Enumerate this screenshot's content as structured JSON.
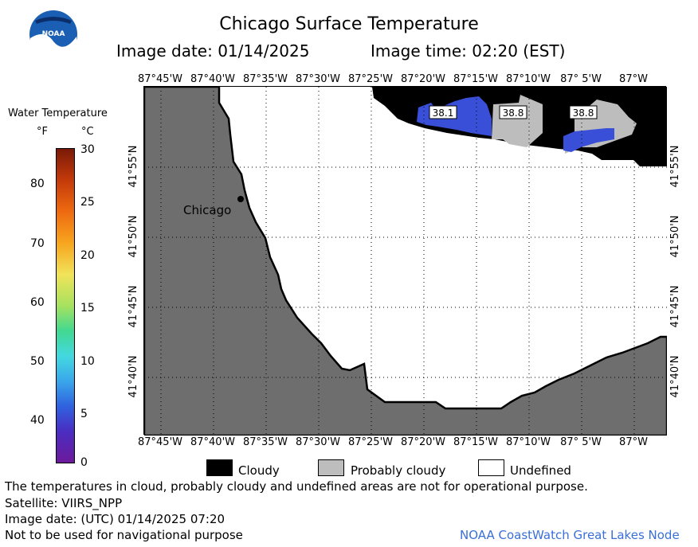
{
  "header": {
    "title": "Chicago Surface Temperature",
    "image_date": "Image date: 01/14/2025",
    "image_time": "Image time: 02:20 (EST)",
    "logo_text": "NOAA"
  },
  "colorbar": {
    "title": "Water Temperature",
    "unit_f": "°F",
    "unit_c": "°C",
    "f_ticks": [
      "80",
      "70",
      "60",
      "50",
      "40"
    ],
    "c_ticks": [
      "30",
      "25",
      "20",
      "15",
      "10",
      "5",
      "0"
    ]
  },
  "map": {
    "lon_labels": [
      "87°45'W",
      "87°40'W",
      "87°35'W",
      "87°30'W",
      "87°25'W",
      "87°20'W",
      "87°15'W",
      "87°10'W",
      "87° 5'W",
      "87°W"
    ],
    "lat_labels": [
      "41°55'N",
      "41°50'N",
      "41°45'N",
      "41°40'N"
    ],
    "city": "Chicago",
    "temp_labels": [
      "38.1",
      "38.8",
      "38.8"
    ],
    "colors": {
      "land": "#6e6e6e",
      "cloudy": "#000000",
      "probably_cloudy": "#bdbdbd",
      "undefined": "#ffffff",
      "cold_water": "#3a4fd8",
      "cold_water_dark": "#2f35b8"
    }
  },
  "legend": {
    "cloudy": "Cloudy",
    "probably_cloudy": "Probably cloudy",
    "undefined": "Undefined"
  },
  "footer": {
    "note": "The temperatures in cloud, probably cloudy and undefined areas are not for operational purpose.",
    "satellite": "Satellite: VIIRS_NPP",
    "utc_date": "Image date: (UTC) 01/14/2025  07:20",
    "nav_warning": "Not to be used for navigational purpose",
    "credit": "NOAA CoastWatch Great Lakes Node"
  }
}
